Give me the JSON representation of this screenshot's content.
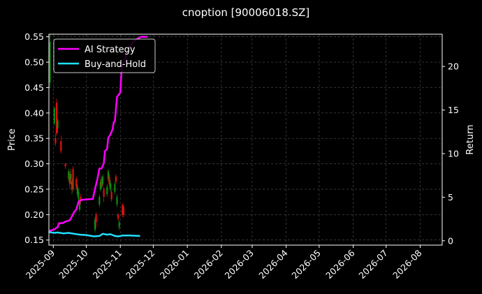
{
  "chart_data": {
    "type": "line",
    "title": "cnoption [90006018.SZ]",
    "ylabel_left": "Price",
    "ylabel_right": "Return",
    "grid": true,
    "legend_position": "top-left",
    "x_ticks": [
      "2025-09",
      "2025-10",
      "2025-11",
      "2025-12",
      "2026-01",
      "2026-02",
      "2026-03",
      "2026-04",
      "2026-05",
      "2026-06",
      "2026-07",
      "2026-08"
    ],
    "x_range": [
      "2025-08-28",
      "2026-08-21"
    ],
    "y_left": {
      "min": 0.14,
      "max": 0.555,
      "ticks": [
        "0.15",
        "0.20",
        "0.25",
        "0.30",
        "0.35",
        "0.40",
        "0.45",
        "0.50",
        "0.55"
      ]
    },
    "y_right": {
      "min": -0.5,
      "max": 23.7,
      "ticks": [
        "0",
        "5",
        "10",
        "15",
        "20"
      ]
    },
    "candles": [
      {
        "date": "2025-08-29",
        "o": 0.46,
        "c": 0.54,
        "h": 0.555,
        "l": 0.45,
        "dir": "up"
      },
      {
        "date": "2025-09-02",
        "o": 0.38,
        "c": 0.41,
        "h": 0.412,
        "l": 0.375,
        "dir": "up"
      },
      {
        "date": "2025-09-03",
        "o": 0.35,
        "c": 0.34,
        "h": 0.36,
        "l": 0.335,
        "dir": "down"
      },
      {
        "date": "2025-09-04",
        "o": 0.42,
        "c": 0.36,
        "h": 0.428,
        "l": 0.355,
        "dir": "down"
      },
      {
        "date": "2025-09-05",
        "o": 0.37,
        "c": 0.385,
        "h": 0.39,
        "l": 0.36,
        "dir": "up"
      },
      {
        "date": "2025-09-08",
        "o": 0.345,
        "c": 0.325,
        "h": 0.355,
        "l": 0.32,
        "dir": "down"
      },
      {
        "date": "2025-09-12",
        "o": 0.3,
        "c": 0.295,
        "h": 0.302,
        "l": 0.29,
        "dir": "down"
      },
      {
        "date": "2025-09-15",
        "o": 0.27,
        "c": 0.285,
        "h": 0.29,
        "l": 0.265,
        "dir": "up"
      },
      {
        "date": "2025-09-16",
        "o": 0.28,
        "c": 0.26,
        "h": 0.285,
        "l": 0.25,
        "dir": "down"
      },
      {
        "date": "2025-09-17",
        "o": 0.27,
        "c": 0.28,
        "h": 0.29,
        "l": 0.26,
        "dir": "up"
      },
      {
        "date": "2025-09-18",
        "o": 0.25,
        "c": 0.265,
        "h": 0.27,
        "l": 0.24,
        "dir": "up"
      },
      {
        "date": "2025-09-19",
        "o": 0.29,
        "c": 0.25,
        "h": 0.295,
        "l": 0.245,
        "dir": "down"
      },
      {
        "date": "2025-09-22",
        "o": 0.27,
        "c": 0.255,
        "h": 0.275,
        "l": 0.25,
        "dir": "down"
      },
      {
        "date": "2025-09-23",
        "o": 0.24,
        "c": 0.255,
        "h": 0.26,
        "l": 0.235,
        "dir": "up"
      },
      {
        "date": "2025-09-24",
        "o": 0.23,
        "c": 0.245,
        "h": 0.25,
        "l": 0.22,
        "dir": "up"
      },
      {
        "date": "2025-09-25",
        "o": 0.21,
        "c": 0.225,
        "h": 0.23,
        "l": 0.205,
        "dir": "up"
      },
      {
        "date": "2025-09-26",
        "o": 0.235,
        "c": 0.225,
        "h": 0.24,
        "l": 0.22,
        "dir": "down"
      },
      {
        "date": "2025-10-09",
        "o": 0.17,
        "c": 0.19,
        "h": 0.195,
        "l": 0.165,
        "dir": "up"
      },
      {
        "date": "2025-10-10",
        "o": 0.2,
        "c": 0.185,
        "h": 0.205,
        "l": 0.175,
        "dir": "down"
      },
      {
        "date": "2025-10-13",
        "o": 0.22,
        "c": 0.235,
        "h": 0.24,
        "l": 0.215,
        "dir": "up"
      },
      {
        "date": "2025-10-14",
        "o": 0.25,
        "c": 0.265,
        "h": 0.27,
        "l": 0.245,
        "dir": "up"
      },
      {
        "date": "2025-10-15",
        "o": 0.27,
        "c": 0.255,
        "h": 0.275,
        "l": 0.25,
        "dir": "down"
      },
      {
        "date": "2025-10-16",
        "o": 0.26,
        "c": 0.275,
        "h": 0.28,
        "l": 0.255,
        "dir": "up"
      },
      {
        "date": "2025-10-17",
        "o": 0.25,
        "c": 0.235,
        "h": 0.255,
        "l": 0.225,
        "dir": "down"
      },
      {
        "date": "2025-10-20",
        "o": 0.24,
        "c": 0.255,
        "h": 0.26,
        "l": 0.235,
        "dir": "up"
      },
      {
        "date": "2025-10-21",
        "o": 0.27,
        "c": 0.285,
        "h": 0.29,
        "l": 0.265,
        "dir": "up"
      },
      {
        "date": "2025-10-22",
        "o": 0.275,
        "c": 0.26,
        "h": 0.28,
        "l": 0.255,
        "dir": "down"
      },
      {
        "date": "2025-10-23",
        "o": 0.25,
        "c": 0.262,
        "h": 0.268,
        "l": 0.245,
        "dir": "up"
      },
      {
        "date": "2025-10-24",
        "o": 0.245,
        "c": 0.23,
        "h": 0.25,
        "l": 0.225,
        "dir": "down"
      },
      {
        "date": "2025-10-27",
        "o": 0.245,
        "c": 0.26,
        "h": 0.265,
        "l": 0.24,
        "dir": "up"
      },
      {
        "date": "2025-10-28",
        "o": 0.275,
        "c": 0.265,
        "h": 0.28,
        "l": 0.26,
        "dir": "down"
      },
      {
        "date": "2025-10-29",
        "o": 0.22,
        "c": 0.235,
        "h": 0.24,
        "l": 0.215,
        "dir": "up"
      },
      {
        "date": "2025-10-30",
        "o": 0.2,
        "c": 0.192,
        "h": 0.203,
        "l": 0.188,
        "dir": "down"
      },
      {
        "date": "2025-10-31",
        "o": 0.175,
        "c": 0.185,
        "h": 0.19,
        "l": 0.17,
        "dir": "up"
      },
      {
        "date": "2025-11-03",
        "o": 0.22,
        "c": 0.2,
        "h": 0.222,
        "l": 0.195,
        "dir": "down"
      },
      {
        "date": "2025-11-04",
        "o": 0.215,
        "c": 0.2,
        "h": 0.218,
        "l": 0.195,
        "dir": "down"
      }
    ],
    "series": [
      {
        "name": "AI Strategy",
        "color": "#ff00ff",
        "axis": "right",
        "x": [
          "2025-08-28",
          "2025-09-02",
          "2025-09-04",
          "2025-09-05",
          "2025-09-06",
          "2025-09-10",
          "2025-09-12",
          "2025-09-16",
          "2025-09-18",
          "2025-09-20",
          "2025-09-22",
          "2025-09-24",
          "2025-09-25",
          "2025-09-27",
          "2025-10-07",
          "2025-10-09",
          "2025-10-11",
          "2025-10-13",
          "2025-10-15",
          "2025-10-17",
          "2025-10-18",
          "2025-10-20",
          "2025-10-21",
          "2025-10-23",
          "2025-10-25",
          "2025-10-26",
          "2025-10-27",
          "2025-10-29",
          "2025-11-01",
          "2025-11-02",
          "2025-11-03",
          "2025-11-05",
          "2025-11-07",
          "2025-11-10",
          "2025-11-13",
          "2025-11-17",
          "2025-11-20",
          "2025-11-26"
        ],
        "y": [
          1.1,
          1.3,
          1.5,
          1.55,
          2.0,
          2.05,
          2.2,
          2.35,
          2.8,
          3.3,
          3.6,
          4.5,
          4.6,
          4.7,
          4.8,
          6.0,
          7.0,
          8.3,
          8.3,
          8.9,
          10.3,
          10.5,
          11.8,
          12.2,
          12.8,
          13.6,
          13.7,
          16.5,
          17.0,
          19.2,
          20.0,
          20.8,
          21.5,
          22.3,
          22.9,
          23.2,
          23.4,
          23.4
        ]
      },
      {
        "name": "Buy-and-Hold",
        "color": "#20e0ff",
        "axis": "right",
        "x": [
          "2025-08-28",
          "2025-09-02",
          "2025-09-05",
          "2025-09-10",
          "2025-09-15",
          "2025-09-20",
          "2025-09-25",
          "2025-10-01",
          "2025-10-08",
          "2025-10-13",
          "2025-10-16",
          "2025-10-20",
          "2025-10-23",
          "2025-10-27",
          "2025-10-30",
          "2025-11-03",
          "2025-11-10",
          "2025-11-19"
        ],
        "y": [
          1.0,
          0.9,
          0.95,
          0.85,
          0.9,
          0.8,
          0.7,
          0.65,
          0.5,
          0.55,
          0.8,
          0.7,
          0.75,
          0.55,
          0.5,
          0.6,
          0.6,
          0.55
        ]
      }
    ]
  }
}
